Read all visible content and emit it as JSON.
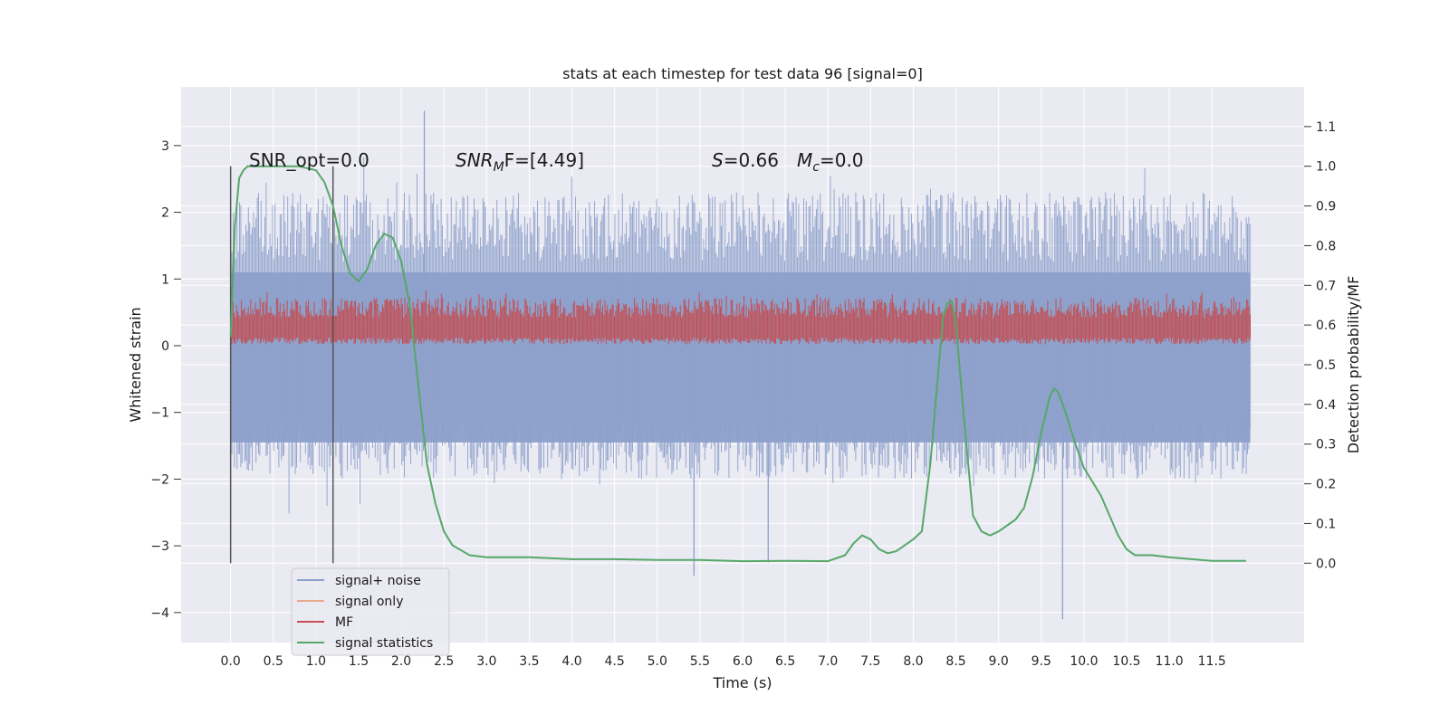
{
  "chart_data": {
    "type": "line",
    "title": "stats at each timestep for test data 96 [signal=0]",
    "xlabel": "Time (s)",
    "ylabel": "Whitened strain",
    "ylabel_right": "Detection probability/MF",
    "xlim": [
      -0.58,
      12.58
    ],
    "ylim_left": [
      -4.45,
      3.88
    ],
    "ylim_right": [
      -0.2,
      1.2
    ],
    "x_ticks": [
      "0.0",
      "0.5",
      "1.0",
      "1.5",
      "2.0",
      "2.5",
      "3.0",
      "3.5",
      "4.0",
      "4.5",
      "5.0",
      "5.5",
      "6.0",
      "6.5",
      "7.0",
      "7.5",
      "8.0",
      "8.5",
      "9.0",
      "9.5",
      "10.0",
      "10.5",
      "11.0",
      "11.5"
    ],
    "y_ticks_left": [
      "−4",
      "−3",
      "−2",
      "−1",
      "0",
      "1",
      "2",
      "3"
    ],
    "y_ticks_right": [
      "0.0",
      "0.1",
      "0.2",
      "0.3",
      "0.4",
      "0.5",
      "0.6",
      "0.7",
      "0.8",
      "0.9",
      "1.0",
      "1.1"
    ],
    "annotations": {
      "snr_opt": "SNR_opt=0.0",
      "snr_mf": "SNR",
      "snr_mf_sub": "M",
      "snr_mf_tail": "F=[4.49]",
      "s_label": "S",
      "s_value": "=0.66",
      "mc_label": "M",
      "mc_sub": "c",
      "mc_value": "=0.0"
    },
    "vlines_x": [
      0.0,
      1.2
    ],
    "noise_range": [
      0.0,
      11.95
    ],
    "noise_envelope": {
      "typical": [
        -2.0,
        2.3
      ],
      "min": -4.1,
      "max": 3.52
    },
    "mf_band": [
      0.0,
      0.88
    ],
    "series": [
      {
        "name": "signal+ noise",
        "color": "#8da0cb",
        "axis": "left"
      },
      {
        "name": "signal only",
        "color": "#e8a98f",
        "axis": "left"
      },
      {
        "name": "MF",
        "color": "#c44e52",
        "axis": "left"
      },
      {
        "name": "signal statistics",
        "color": "#55a868",
        "axis": "right",
        "x": [
          0.0,
          0.05,
          0.1,
          0.15,
          0.2,
          0.3,
          0.5,
          0.8,
          1.0,
          1.1,
          1.2,
          1.3,
          1.4,
          1.5,
          1.6,
          1.7,
          1.8,
          1.9,
          2.0,
          2.1,
          2.2,
          2.3,
          2.4,
          2.5,
          2.6,
          2.8,
          3.0,
          3.5,
          4.0,
          4.5,
          5.0,
          5.5,
          6.0,
          6.5,
          7.0,
          7.2,
          7.3,
          7.4,
          7.5,
          7.6,
          7.7,
          7.8,
          8.0,
          8.1,
          8.2,
          8.3,
          8.35,
          8.4,
          8.45,
          8.5,
          8.6,
          8.7,
          8.8,
          8.9,
          9.0,
          9.2,
          9.3,
          9.4,
          9.5,
          9.6,
          9.65,
          9.7,
          9.8,
          9.9,
          10.0,
          10.2,
          10.4,
          10.5,
          10.6,
          10.8,
          11.0,
          11.5,
          11.9
        ],
        "y": [
          0.57,
          0.85,
          0.97,
          0.99,
          1.0,
          1.0,
          1.0,
          1.0,
          0.99,
          0.96,
          0.9,
          0.8,
          0.73,
          0.71,
          0.74,
          0.8,
          0.83,
          0.82,
          0.76,
          0.65,
          0.45,
          0.25,
          0.15,
          0.08,
          0.045,
          0.02,
          0.015,
          0.015,
          0.01,
          0.01,
          0.008,
          0.008,
          0.005,
          0.006,
          0.005,
          0.02,
          0.05,
          0.07,
          0.06,
          0.035,
          0.025,
          0.03,
          0.06,
          0.08,
          0.25,
          0.5,
          0.62,
          0.655,
          0.66,
          0.6,
          0.35,
          0.12,
          0.08,
          0.07,
          0.08,
          0.11,
          0.14,
          0.22,
          0.33,
          0.42,
          0.44,
          0.43,
          0.37,
          0.3,
          0.24,
          0.17,
          0.07,
          0.035,
          0.02,
          0.02,
          0.015,
          0.006,
          0.006
        ]
      }
    ],
    "legend": {
      "placement": "lower-left",
      "entries": [
        "signal+ noise",
        "signal only",
        "MF",
        "signal statistics"
      ]
    }
  }
}
